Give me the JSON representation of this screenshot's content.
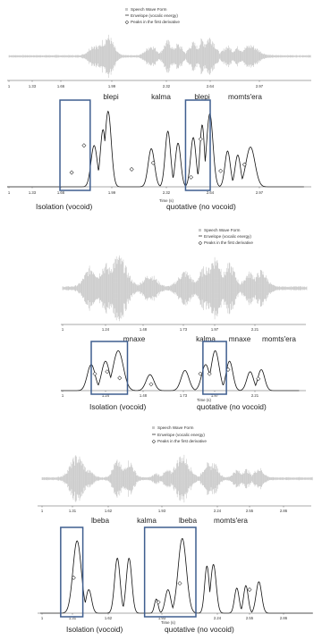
{
  "legend": {
    "waveform": "Speech Wave Form",
    "envelope": "Envelope (vocalic energy)",
    "peaks": "Peaks in the first derivative"
  },
  "xlabel": "Time (s)",
  "colors": {
    "waveform": "#c8c8c8",
    "envelope": "#111111",
    "box": "#3f5e8f",
    "axis": "#555555"
  },
  "chart_data": [
    {
      "type": "line",
      "ticks": [
        "1",
        "1.33",
        "1.66",
        "1.99",
        "2.32",
        "2.64",
        "2.97"
      ],
      "words": [
        "blepi",
        "kalma",
        "blepi",
        "momts'era"
      ],
      "box_labels": [
        "Isolation (vocoid)",
        "quotative (no vocoid)"
      ],
      "envelope": {
        "x": [
          1.67,
          1.74,
          1.78,
          2.12,
          2.25,
          2.33,
          2.45,
          2.52,
          2.58,
          2.72,
          2.8,
          2.9
        ],
        "y": [
          0.52,
          0.72,
          0.95,
          0.48,
          0.7,
          0.55,
          0.62,
          0.78,
          0.92,
          0.45,
          0.4,
          0.5
        ],
        "width": [
          0.035,
          0.03,
          0.035,
          0.035,
          0.03,
          0.03,
          0.03,
          0.025,
          0.035,
          0.03,
          0.03,
          0.05
        ]
      },
      "peaks": {
        "x": [
          1.73,
          1.81,
          2.11,
          2.24,
          2.5,
          2.57,
          2.71,
          2.87
        ],
        "y": [
          0.18,
          0.52,
          0.22,
          0.3,
          0.12,
          0.6,
          0.2,
          0.28
        ]
      },
      "boxes": [
        [
          1.65,
          1.85
        ],
        [
          2.46,
          2.64
        ]
      ]
    },
    {
      "type": "line",
      "ticks": [
        "1",
        "1.24",
        "1.48",
        "1.73",
        "1.97",
        "2.21"
      ],
      "words": [
        "mnaxe",
        "kalma",
        "mnaxe",
        "momts'era"
      ],
      "box_labels": [
        "Isolation (vocoid)",
        "quotative (no vocoid)"
      ],
      "envelope": {
        "x": [
          1.18,
          1.27,
          1.35,
          1.55,
          1.77,
          1.9,
          1.96,
          2.05,
          2.18,
          2.25
        ],
        "y": [
          0.62,
          0.7,
          0.95,
          0.38,
          0.48,
          0.62,
          0.95,
          0.7,
          0.45,
          0.5
        ],
        "width": [
          0.035,
          0.035,
          0.045,
          0.035,
          0.035,
          0.035,
          0.035,
          0.03,
          0.03,
          0.03
        ]
      },
      "peaks": {
        "x": [
          1.18,
          1.25,
          1.33,
          1.53,
          1.86,
          1.93,
          2.05,
          2.23
        ],
        "y": [
          0.4,
          0.45,
          0.3,
          0.15,
          0.4,
          0.4,
          0.5,
          0.28
        ]
      },
      "boxes": [
        [
          1.16,
          1.38
        ],
        [
          1.88,
          2.04
        ]
      ]
    },
    {
      "type": "line",
      "ticks": [
        "1",
        "1.31",
        "1.62",
        "1.93",
        "2.24",
        "2.55",
        "2.86"
      ],
      "words": [
        "lbeba",
        "kalma",
        "lbeba",
        "momts'era"
      ],
      "box_labels": [
        "Isolation (vocoid)",
        "quotative (no vocoid)"
      ],
      "envelope": {
        "x": [
          1.27,
          1.36,
          1.58,
          1.67,
          1.88,
          1.97,
          2.08,
          2.27,
          2.32,
          2.5,
          2.57,
          2.67
        ],
        "y": [
          0.92,
          0.3,
          0.7,
          0.7,
          0.18,
          0.3,
          0.95,
          0.6,
          0.62,
          0.32,
          0.35,
          0.4
        ],
        "width": [
          0.045,
          0.03,
          0.03,
          0.03,
          0.02,
          0.03,
          0.045,
          0.025,
          0.03,
          0.025,
          0.025,
          0.03
        ]
      },
      "peaks": {
        "x": [
          1.32,
          1.91,
          2.03,
          2.55
        ],
        "y": [
          0.45,
          0.14,
          0.38,
          0.3
        ]
      },
      "boxes": [
        [
          1.19,
          1.4
        ],
        [
          1.83,
          2.12
        ]
      ]
    }
  ]
}
